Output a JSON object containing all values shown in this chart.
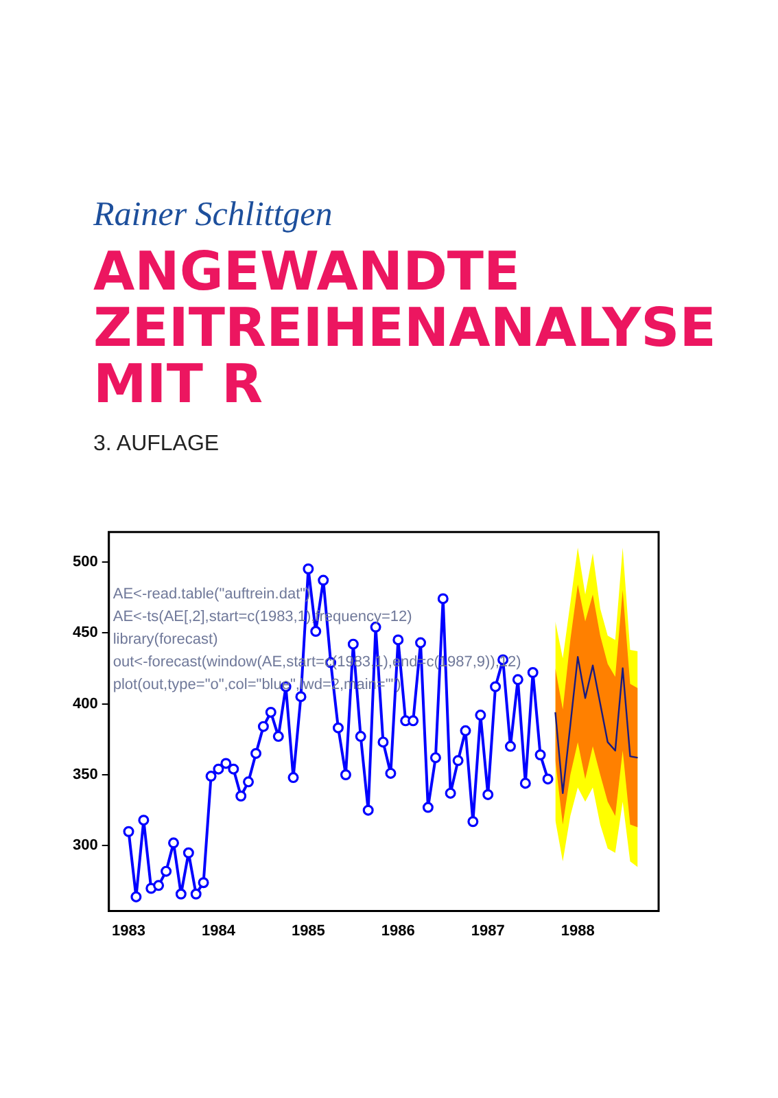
{
  "chart_data": {
    "type": "line",
    "title": "ANGEWANDTE ZEITREIHENANALYSE MIT R",
    "subtitle": "3. AUFLAGE",
    "annotations": [
      "Rainer Schlittgen",
      "AE<-read.table(\"auftrein.dat\")",
      "AE<-ts(AE[,2],start=c(1983,1),frequency=12)",
      "library(forecast)",
      "out<-forecast(window(AE,start=c(1983,1),end=c(1987,9)),12)",
      "plot(out,type=\"o\",col=\"blue\",lwd=2,main=\"\")"
    ],
    "xlim": [
      1982.78,
      1988.9
    ],
    "xticks": [
      1983,
      1984,
      1985,
      1986,
      1987,
      1988
    ],
    "ylim": [
      254,
      521
    ],
    "yticks": [
      300,
      350,
      400,
      450,
      500
    ],
    "grid": false,
    "legend": false,
    "marker": "circle",
    "line_style": "solid",
    "series": [
      {
        "color": "#ffff00",
        "x": [
          1987.75,
          1987.833,
          1987.917,
          1988,
          1988.083,
          1988.167,
          1988.25,
          1988.333,
          1988.417,
          1988.5,
          1988.583,
          1988.667
        ],
        "values": [
          null,
          null,
          null,
          null,
          null,
          null,
          null,
          null,
          null,
          null,
          null,
          null
        ],
        "lower": [
          318,
          289,
          321,
          341,
          331,
          341,
          315,
          298,
          295,
          331,
          289,
          285
        ],
        "upper": [
          458,
          432,
          471,
          510,
          477,
          506,
          467,
          448,
          445,
          510,
          438,
          437
        ]
      },
      {
        "color": "#ff8000",
        "x": [
          1987.75,
          1987.833,
          1987.917,
          1988,
          1988.083,
          1988.167,
          1988.25,
          1988.333,
          1988.417,
          1988.5,
          1988.583,
          1988.667
        ],
        "values": [
          null,
          null,
          null,
          null,
          null,
          null,
          null,
          null,
          null,
          null,
          null,
          null
        ],
        "lower": [
          360,
          315,
          350,
          373,
          347,
          370,
          350,
          331,
          321,
          367,
          315,
          313
        ],
        "upper": [
          425,
          396,
          445,
          484,
          458,
          477,
          448,
          428,
          419,
          480,
          414,
          411
        ]
      },
      {
        "color": "#0000ff",
        "x": [
          1983,
          1983.083,
          1983.167,
          1983.25,
          1983.333,
          1983.417,
          1983.5,
          1983.583,
          1983.667,
          1983.75,
          1983.833,
          1983.917,
          1984,
          1984.083,
          1984.167,
          1984.25,
          1984.333,
          1984.417,
          1984.5,
          1984.583,
          1984.667,
          1984.75,
          1984.833,
          1984.917,
          1985,
          1985.083,
          1985.167,
          1985.25,
          1985.333,
          1985.417,
          1985.5,
          1985.583,
          1985.667,
          1985.75,
          1985.833,
          1985.917,
          1986,
          1986.083,
          1986.167,
          1986.25,
          1986.333,
          1986.417,
          1986.5,
          1986.583,
          1986.667,
          1986.75,
          1986.833,
          1986.917,
          1987,
          1987.083,
          1987.167,
          1987.25,
          1987.333,
          1987.417,
          1987.5,
          1987.583,
          1987.667
        ],
        "values": [
          310,
          264,
          318,
          270,
          272,
          282,
          302,
          266,
          295,
          266,
          274,
          349,
          354,
          358,
          354,
          335,
          345,
          365,
          384,
          394,
          377,
          412,
          348,
          405,
          495,
          451,
          487,
          429,
          383,
          350,
          442,
          377,
          325,
          454,
          373,
          351,
          445,
          388,
          388,
          443,
          327,
          362,
          474,
          337,
          360,
          381,
          317,
          392,
          336,
          412,
          431,
          370,
          417,
          344,
          422,
          364,
          347
        ]
      },
      {
        "color": "#1a1a80",
        "marker": "none",
        "x": [
          1987.75,
          1987.833,
          1987.917,
          1988,
          1988.083,
          1988.167,
          1988.25,
          1988.333,
          1988.417,
          1988.5,
          1988.583,
          1988.667
        ],
        "values": [
          394,
          337,
          385,
          433,
          404,
          427,
          400,
          373,
          367,
          425,
          363,
          362
        ]
      }
    ]
  }
}
